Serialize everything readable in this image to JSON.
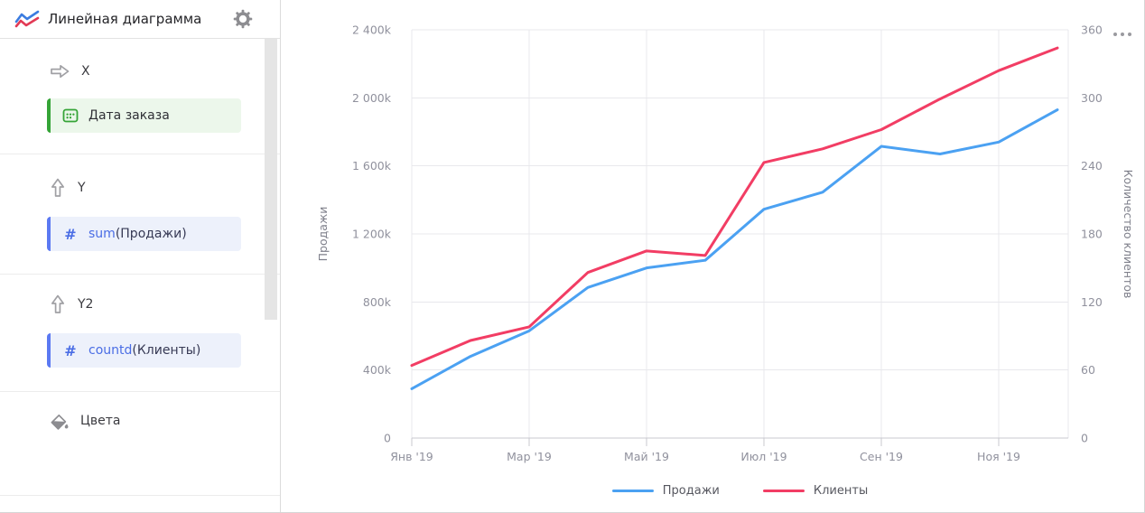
{
  "sidebar": {
    "title": "Линейная диаграмма",
    "logo_icon": "line-chart-logo-icon",
    "settings_icon": "gear-icon",
    "sections": [
      {
        "label": "X",
        "icon": "arrow-right-icon",
        "chips": [
          {
            "icon": "calendar-icon",
            "label": "Дата заказа"
          }
        ]
      },
      {
        "label": "Y",
        "icon": "arrow-up-icon",
        "chips": [
          {
            "icon": "hash-icon",
            "icon_glyph": "#",
            "aggregation": "sum",
            "field": "(Продажи)"
          }
        ]
      },
      {
        "label": "Y2",
        "icon": "arrow-up-icon",
        "chips": [
          {
            "icon": "hash-icon",
            "icon_glyph": "#",
            "aggregation": "countd",
            "field": "(Клиенты)"
          }
        ]
      },
      {
        "label": "Цвета",
        "icon": "paint-bucket-icon",
        "chips": []
      }
    ]
  },
  "chart": {
    "menu_icon": "ellipsis-icon"
  },
  "chart_data": {
    "type": "line",
    "x": [
      "Янв '19",
      "Фев '19",
      "Мар '19",
      "Апр '19",
      "Май '19",
      "Июн '19",
      "Июл '19",
      "Авг '19",
      "Сен '19",
      "Окт '19",
      "Ноя '19",
      "Дек '19"
    ],
    "series": [
      {
        "name": "Продажи",
        "axis": "left",
        "color": "#4ba1f2",
        "values": [
          290000,
          480000,
          630000,
          885000,
          1000000,
          1045000,
          1345000,
          1445000,
          1715000,
          1670000,
          1740000,
          1930000
        ]
      },
      {
        "name": "Клиенты",
        "axis": "right",
        "color": "#f23d64",
        "values": [
          64,
          86,
          98,
          146,
          165,
          161,
          243,
          255,
          272,
          299,
          324,
          344
        ]
      }
    ],
    "y_left": {
      "title": "Продажи",
      "min": 0,
      "max": 2400000,
      "tick_values": [
        0,
        400000,
        800000,
        1200000,
        1600000,
        2000000,
        2400000
      ],
      "tick_labels": [
        "0",
        "400k",
        "800k",
        "1 200k",
        "1 600k",
        "2 000k",
        "2 400k"
      ]
    },
    "y_right": {
      "title": "Количество клиентов",
      "min": 0,
      "max": 360,
      "tick_labels": [
        "0",
        "60",
        "120",
        "180",
        "240",
        "300",
        "360"
      ]
    },
    "x_tick_labels": [
      "Янв '19",
      "Мар '19",
      "Май '19",
      "Июл '19",
      "Сен '19",
      "Ноя '19"
    ],
    "x_tick_every": 2,
    "legend": {
      "position": "bottom",
      "items": [
        "Продажи",
        "Клиенты"
      ]
    },
    "grid": true
  }
}
